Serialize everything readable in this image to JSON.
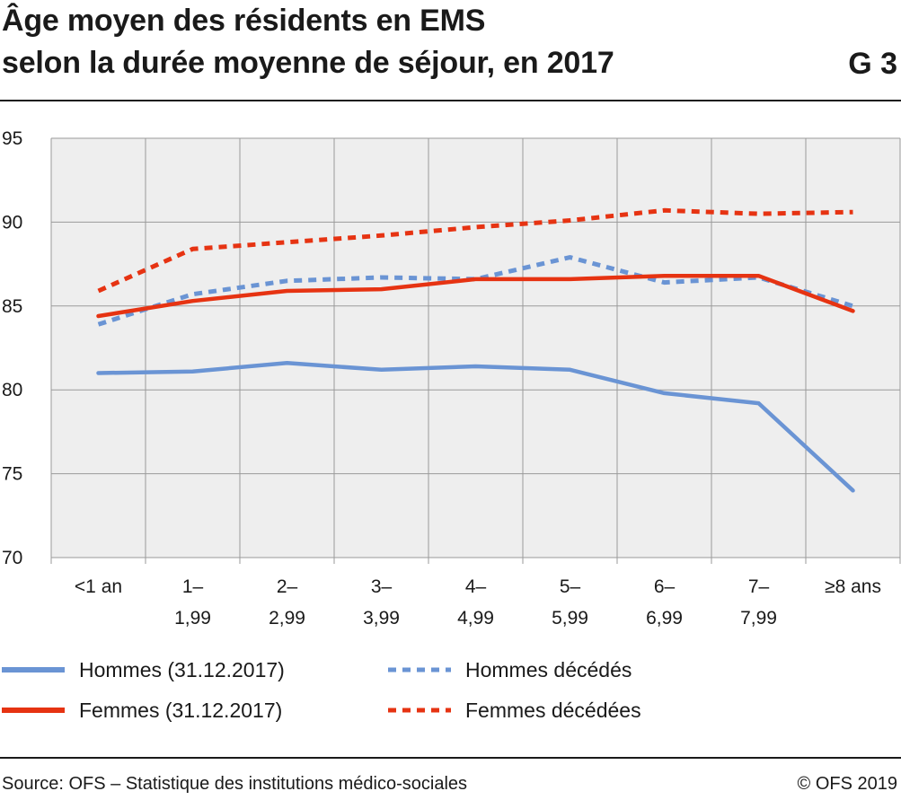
{
  "header": {
    "title_line1": "Âge moyen des résidents en EMS",
    "title_line2": "selon la durée moyenne de séjour, en 2017",
    "graph_number": "G 3"
  },
  "footer": {
    "source": "Source: OFS – Statistique des institutions médico-sociales",
    "copyright": "© OFS 2019"
  },
  "chart_data": {
    "type": "line",
    "title": "Âge moyen des résidents en EMS selon la durée moyenne de séjour, en 2017",
    "categories": [
      [
        "<1 an"
      ],
      [
        "1–",
        "1,99"
      ],
      [
        "2–",
        "2,99"
      ],
      [
        "3–",
        "3,99"
      ],
      [
        "4–",
        "4,99"
      ],
      [
        "5–",
        "5,99"
      ],
      [
        "6–",
        "6,99"
      ],
      [
        "7–",
        "7,99"
      ],
      [
        "≥8 ans"
      ]
    ],
    "ylim": [
      70,
      95
    ],
    "yticks": [
      70,
      75,
      80,
      85,
      90,
      95
    ],
    "grid": true,
    "legend_position": "bottom",
    "series": [
      {
        "name": "Hommes (31.12.2017)",
        "color": "#6a94d4",
        "dash": "solid",
        "values": [
          81.0,
          81.1,
          81.6,
          81.2,
          81.4,
          81.2,
          79.8,
          79.2,
          74.0
        ]
      },
      {
        "name": "Femmes (31.12.2017)",
        "color": "#e63312",
        "dash": "solid",
        "values": [
          84.4,
          85.3,
          85.9,
          86.0,
          86.6,
          86.6,
          86.8,
          86.8,
          84.7
        ]
      },
      {
        "name": "Hommes décédés",
        "color": "#6a94d4",
        "dash": "dotted",
        "values": [
          83.9,
          85.7,
          86.5,
          86.7,
          86.6,
          87.9,
          86.4,
          86.7,
          85.0
        ]
      },
      {
        "name": "Femmes décédées",
        "color": "#e63312",
        "dash": "dotted",
        "values": [
          85.9,
          88.4,
          88.8,
          89.2,
          89.7,
          90.1,
          90.7,
          90.5,
          90.6
        ]
      }
    ]
  }
}
